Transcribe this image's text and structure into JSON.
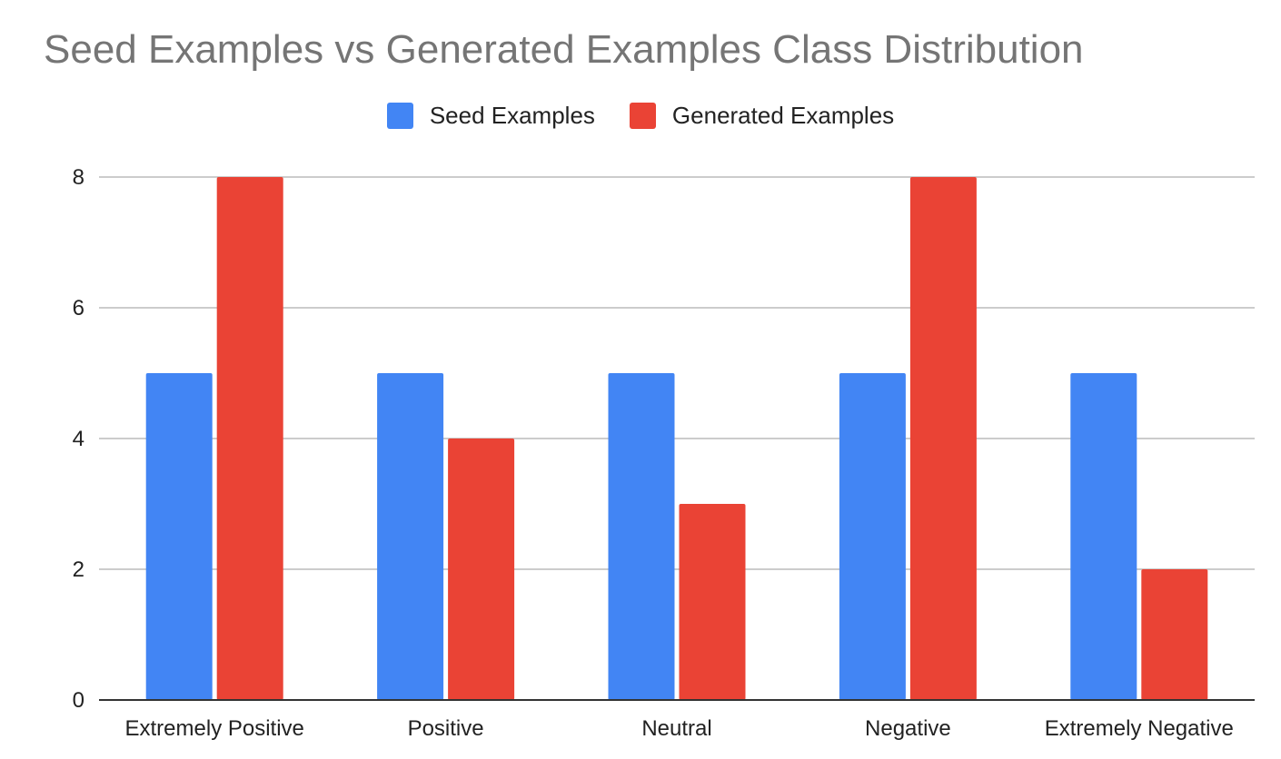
{
  "chart_data": {
    "type": "bar",
    "title": "Seed Examples vs Generated Examples Class Distribution",
    "xlabel": "",
    "ylabel": "",
    "categories": [
      "Extremely Positive",
      "Positive",
      "Neutral",
      "Negative",
      "Extremely Negative"
    ],
    "series": [
      {
        "name": "Seed Examples",
        "values": [
          5,
          5,
          5,
          5,
          5
        ],
        "color": "#4285f4"
      },
      {
        "name": "Generated Examples",
        "values": [
          8,
          4,
          3,
          8,
          2
        ],
        "color": "#ea4335"
      }
    ],
    "ylim": [
      0,
      8
    ],
    "yticks": [
      "0",
      "2",
      "4",
      "6",
      "8"
    ],
    "grid": true,
    "legend_position": "top"
  }
}
